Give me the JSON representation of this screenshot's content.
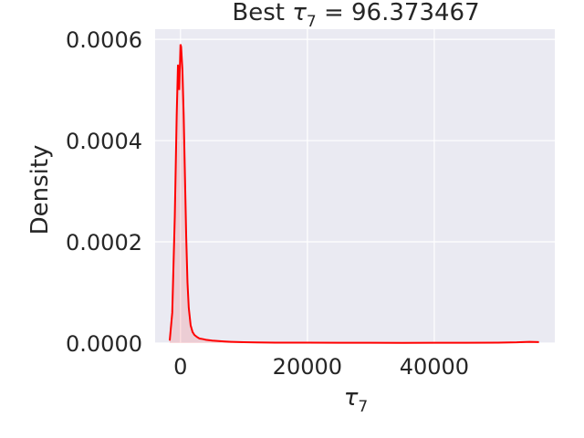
{
  "chart_data": {
    "type": "area",
    "title_prefix": "Best ",
    "title_symbol": "τ",
    "title_subscript": "7",
    "title_suffix": " = 96.373467",
    "xlabel_symbol": "τ",
    "xlabel_subscript": "7",
    "ylabel": "Density",
    "xlim": [
      -4000,
      59000
    ],
    "ylim": [
      0,
      0.00062
    ],
    "xticks": [
      0,
      20000,
      40000
    ],
    "xtick_labels": [
      "0",
      "20000",
      "40000"
    ],
    "yticks": [
      0,
      0.0002,
      0.0004,
      0.0006
    ],
    "ytick_labels": [
      "0.0000",
      "0.0002",
      "0.0004",
      "0.0006"
    ],
    "grid": true,
    "colors": {
      "line": "#ff0000",
      "fill": "#ff0000",
      "background": "#eaeaf2",
      "grid": "#ffffff"
    },
    "series": [
      {
        "x": [
          -1700,
          -1300,
          -900,
          -600,
          -400,
          -200,
          0,
          100,
          300,
          500,
          700,
          900,
          1100,
          1300,
          1600,
          1900,
          2200,
          2600,
          3000,
          3500,
          4000,
          5000,
          6000,
          7000,
          8000,
          10000,
          12000,
          15000,
          20000,
          25000,
          30000,
          35000,
          40000,
          45000,
          50000,
          53000,
          55000,
          56500
        ],
        "y": [
          5e-06,
          6e-05,
          0.00025,
          0.00045,
          0.00055,
          0.0005,
          0.00059,
          0.000585,
          0.00054,
          0.00045,
          0.00033,
          0.00021,
          0.00012,
          7e-05,
          3.5e-05,
          2.2e-05,
          1.6e-05,
          1.2e-05,
          9e-06,
          8e-06,
          6.5e-06,
          5e-06,
          4e-06,
          3.2e-06,
          2.5e-06,
          1.8e-06,
          1.3e-06,
          1e-06,
          8e-07,
          7e-07,
          6e-07,
          5e-07,
          6e-07,
          7e-07,
          1e-06,
          1.5e-06,
          2.5e-06,
          2e-06
        ]
      }
    ]
  }
}
